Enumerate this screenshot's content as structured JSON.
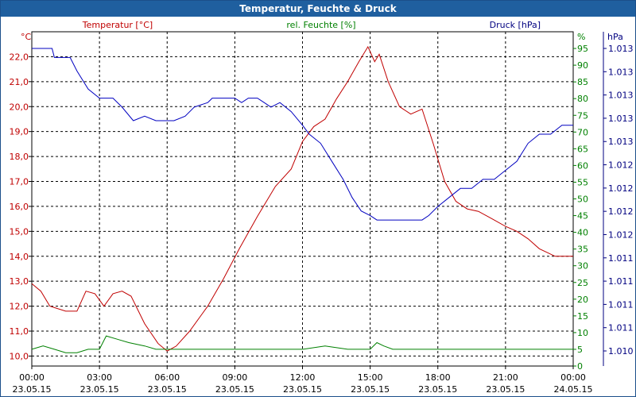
{
  "window": {
    "title": "Temperatur, Feuchte & Druck"
  },
  "chart_data": {
    "type": "line",
    "title": "Temperatur, Feuchte & Druck",
    "x_labels": [
      {
        "time": "00:00",
        "date": "23.05.15"
      },
      {
        "time": "03:00",
        "date": "23.05.15"
      },
      {
        "time": "06:00",
        "date": "23.05.15"
      },
      {
        "time": "09:00",
        "date": "23.05.15"
      },
      {
        "time": "12:00",
        "date": "23.05.15"
      },
      {
        "time": "15:00",
        "date": "23.05.15"
      },
      {
        "time": "18:00",
        "date": "23.05.15"
      },
      {
        "time": "21:00",
        "date": "23.05.15"
      },
      {
        "time": "00:00",
        "date": "24.05.15"
      }
    ],
    "xlim_hours": [
      0,
      24
    ],
    "axes": {
      "temperature": {
        "label": "Temperatur [°C]",
        "unit": "°C",
        "color": "#c00000",
        "ylim": [
          9.6,
          23.0
        ],
        "ticks": [
          "10,0",
          "11,0",
          "12,0",
          "13,0",
          "14,0",
          "15,0",
          "16,0",
          "17,0",
          "18,0",
          "19,0",
          "20,0",
          "21,0",
          "22,0"
        ]
      },
      "humidity": {
        "label": "rel. Feuchte [%]",
        "unit": "%",
        "color": "#008000",
        "ylim": [
          0,
          100
        ],
        "ticks": [
          "0",
          "5",
          "10",
          "15",
          "20",
          "25",
          "30",
          "35",
          "40",
          "45",
          "50",
          "55",
          "60",
          "65",
          "70",
          "75",
          "80",
          "85",
          "90",
          "95"
        ]
      },
      "pressure": {
        "label": "Druck [hPa]",
        "unit": "hPa",
        "color": "#000080",
        "ticks": [
          "1.010",
          "1.011",
          "1.011",
          "1.011",
          "1.011",
          "1.012",
          "1.012",
          "1.012",
          "1.012",
          "1.013",
          "1.013",
          "1.013",
          "1.013",
          "1.013"
        ]
      }
    },
    "series": [
      {
        "name": "Temperatur",
        "axis": "temperature",
        "color": "#c00000",
        "points": [
          [
            0,
            12.9
          ],
          [
            0.4,
            12.6
          ],
          [
            0.8,
            12.0
          ],
          [
            1.5,
            11.8
          ],
          [
            2.0,
            11.8
          ],
          [
            2.4,
            12.6
          ],
          [
            2.8,
            12.5
          ],
          [
            3.2,
            12.0
          ],
          [
            3.6,
            12.5
          ],
          [
            4.0,
            12.6
          ],
          [
            4.4,
            12.4
          ],
          [
            5.0,
            11.3
          ],
          [
            5.6,
            10.5
          ],
          [
            6.0,
            10.2
          ],
          [
            6.4,
            10.4
          ],
          [
            7.0,
            11.0
          ],
          [
            7.8,
            12.0
          ],
          [
            8.5,
            13.1
          ],
          [
            9.2,
            14.3
          ],
          [
            10.0,
            15.6
          ],
          [
            10.8,
            16.8
          ],
          [
            11.5,
            17.5
          ],
          [
            12.0,
            18.6
          ],
          [
            12.5,
            19.2
          ],
          [
            13.0,
            19.5
          ],
          [
            13.5,
            20.3
          ],
          [
            14.0,
            21.0
          ],
          [
            14.5,
            21.8
          ],
          [
            14.9,
            22.4
          ],
          [
            15.2,
            21.8
          ],
          [
            15.4,
            22.1
          ],
          [
            15.8,
            21.0
          ],
          [
            16.3,
            20.0
          ],
          [
            16.8,
            19.7
          ],
          [
            17.3,
            19.9
          ],
          [
            17.8,
            18.5
          ],
          [
            18.3,
            17.0
          ],
          [
            18.8,
            16.2
          ],
          [
            19.3,
            15.9
          ],
          [
            19.8,
            15.8
          ],
          [
            20.4,
            15.5
          ],
          [
            21.0,
            15.2
          ],
          [
            21.5,
            15.0
          ],
          [
            22.0,
            14.7
          ],
          [
            22.5,
            14.3
          ],
          [
            23.2,
            14.0
          ],
          [
            24.0,
            14.0
          ]
        ]
      },
      {
        "name": "rel. Feuchte",
        "axis": "humidity",
        "color": "#008000",
        "points": [
          [
            0,
            5
          ],
          [
            0.5,
            6
          ],
          [
            1.0,
            5
          ],
          [
            1.5,
            4
          ],
          [
            2.0,
            4
          ],
          [
            2.5,
            5
          ],
          [
            3.0,
            5
          ],
          [
            3.3,
            9
          ],
          [
            3.8,
            8
          ],
          [
            4.3,
            7
          ],
          [
            5.0,
            6
          ],
          [
            5.5,
            5
          ],
          [
            6.0,
            5
          ],
          [
            6.5,
            5
          ],
          [
            7.0,
            5
          ],
          [
            8.0,
            5
          ],
          [
            9.0,
            5
          ],
          [
            10.0,
            5
          ],
          [
            11.0,
            5
          ],
          [
            12.0,
            5
          ],
          [
            13.0,
            6
          ],
          [
            14.0,
            5
          ],
          [
            15.0,
            5
          ],
          [
            15.3,
            7
          ],
          [
            15.6,
            6
          ],
          [
            16.0,
            5
          ],
          [
            17.0,
            5
          ],
          [
            18.0,
            5
          ],
          [
            19.0,
            5
          ],
          [
            20.0,
            5
          ],
          [
            21.0,
            5
          ],
          [
            22.0,
            5
          ],
          [
            23.0,
            5
          ],
          [
            24.0,
            5
          ]
        ]
      },
      {
        "name": "Druck",
        "axis": "pressure",
        "color": "#0000c0",
        "points": [
          [
            0,
            1.01335
          ],
          [
            0.9,
            1.01335
          ],
          [
            1.0,
            1.01325
          ],
          [
            1.7,
            1.01325
          ],
          [
            2.0,
            1.0131
          ],
          [
            2.5,
            1.0129
          ],
          [
            3.0,
            1.0128
          ],
          [
            3.6,
            1.0128
          ],
          [
            4.0,
            1.0127
          ],
          [
            4.5,
            1.01255
          ],
          [
            5.0,
            1.0126
          ],
          [
            5.5,
            1.01255
          ],
          [
            6.3,
            1.01255
          ],
          [
            6.8,
            1.0126
          ],
          [
            7.2,
            1.0127
          ],
          [
            7.8,
            1.01275
          ],
          [
            8.0,
            1.0128
          ],
          [
            8.3,
            1.0128
          ],
          [
            9.0,
            1.0128
          ],
          [
            9.3,
            1.01275
          ],
          [
            9.6,
            1.0128
          ],
          [
            10.0,
            1.0128
          ],
          [
            10.3,
            1.01275
          ],
          [
            10.6,
            1.0127
          ],
          [
            11.0,
            1.01275
          ],
          [
            11.5,
            1.01265
          ],
          [
            12.0,
            1.0125
          ],
          [
            12.3,
            1.0124
          ],
          [
            12.8,
            1.0123
          ],
          [
            13.3,
            1.0121
          ],
          [
            13.8,
            1.0119
          ],
          [
            14.2,
            1.0117
          ],
          [
            14.6,
            1.01155
          ],
          [
            15.0,
            1.0115
          ],
          [
            15.3,
            1.01145
          ],
          [
            15.6,
            1.01145
          ],
          [
            16.0,
            1.01145
          ],
          [
            17.3,
            1.01145
          ],
          [
            17.6,
            1.0115
          ],
          [
            18.0,
            1.0116
          ],
          [
            18.5,
            1.0117
          ],
          [
            19.0,
            1.0118
          ],
          [
            19.5,
            1.0118
          ],
          [
            20.0,
            1.0119
          ],
          [
            20.5,
            1.0119
          ],
          [
            21.0,
            1.012
          ],
          [
            21.5,
            1.0121
          ],
          [
            22.0,
            1.0123
          ],
          [
            22.5,
            1.0124
          ],
          [
            23.0,
            1.0124
          ],
          [
            23.5,
            1.0125
          ],
          [
            24.0,
            1.0125
          ]
        ]
      }
    ]
  }
}
